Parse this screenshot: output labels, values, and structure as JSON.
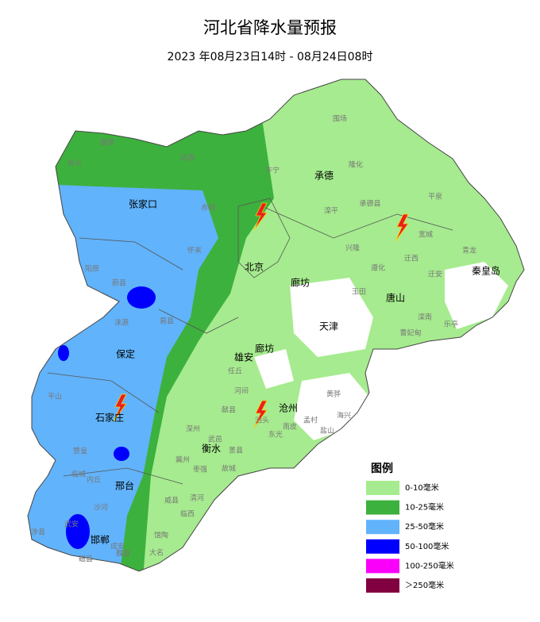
{
  "header": {
    "title": "河北省降水量预报",
    "subtitle": "2023 年08月23日14时 - 08月24日08时"
  },
  "map": {
    "legend": {
      "title": "图例",
      "items": [
        {
          "label": "0-10毫米",
          "color": "#a6eb8f"
        },
        {
          "label": "10-25毫米",
          "color": "#3db13d"
        },
        {
          "label": "25-50毫米",
          "color": "#61b3fb"
        },
        {
          "label": "50-100毫米",
          "color": "#0000fe"
        },
        {
          "label": "100-250毫米",
          "color": "#fa00fa"
        },
        {
          "label": "＞250毫米",
          "color": "#800040"
        }
      ]
    },
    "cities": [
      "张家口",
      "承德",
      "北京",
      "廊坊",
      "天津",
      "唐山",
      "秦皇岛",
      "保定",
      "雄安",
      "廊坊",
      "石家庄",
      "沧州",
      "衡水",
      "邢台",
      "邯郸"
    ],
    "counties": [
      "围场",
      "丰宁",
      "隆化",
      "滦平",
      "承德县",
      "兴隆",
      "宽城",
      "平泉",
      "青龙",
      "迁西",
      "遵化",
      "迁安",
      "玉田",
      "滦南",
      "乐亭",
      "曹妃甸",
      "尚义",
      "康保",
      "沽源",
      "赤城",
      "怀来",
      "阳原",
      "蔚县",
      "涞源",
      "易县",
      "任丘",
      "河间",
      "献县",
      "泊头",
      "黄骅",
      "海兴",
      "盐山",
      "孟村",
      "南皮",
      "东光",
      "景县",
      "深州",
      "武邑",
      "冀州",
      "枣强",
      "故城",
      "清河",
      "临西",
      "威县",
      "平山",
      "赞皇",
      "临城",
      "内丘",
      "沙河",
      "武安",
      "涉县",
      "磁县",
      "魏县",
      "大名",
      "成安",
      "馆陶"
    ]
  }
}
